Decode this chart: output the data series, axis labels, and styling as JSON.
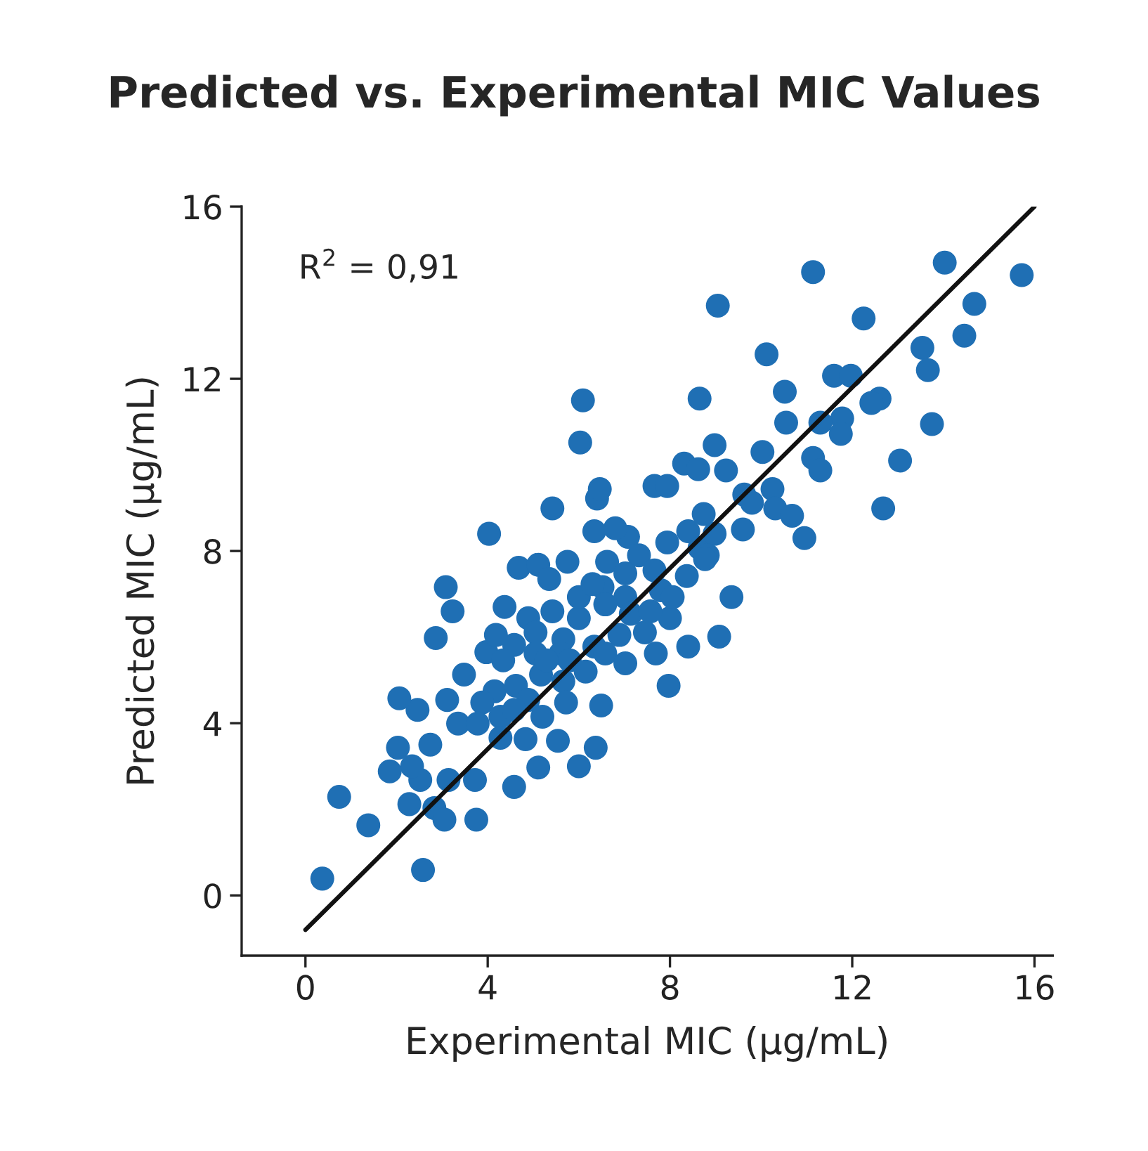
{
  "chart_data": {
    "type": "scatter",
    "title": "Predicted vs. Experimental MIC Values",
    "xlabel": "Experimental MIC (µg/mL)",
    "ylabel": "Predicted MIC (µg/mL)",
    "annotations": [
      "R$^{2}$ = 0,91"
    ],
    "xlim": [
      -1.4,
      16.4
    ],
    "ylim": [
      -1.4,
      16
    ],
    "xticks": [
      0,
      4,
      8,
      12,
      16
    ],
    "yticks": [
      0,
      4,
      8,
      12,
      16
    ],
    "grid": false,
    "series": [
      {
        "marker": "circle",
        "color": "#1f6fb4",
        "x": [
          11.14,
          14.03,
          15.72,
          9.05,
          14.68,
          12.25,
          14.46,
          13.54,
          10.12,
          13.66,
          11.6,
          11.97,
          10.52,
          12.6,
          12.42,
          8.65,
          6.09,
          11.78,
          13.75,
          10.55,
          11.3,
          11.75,
          6.03,
          8.98,
          8.31,
          8.62,
          10.03,
          11.14,
          11.3,
          13.05,
          9.23,
          10.25,
          9.63,
          10.31,
          9.8,
          12.68,
          10.68,
          10.95,
          9.6,
          7.66,
          7.94,
          6.4,
          5.42,
          6.46,
          8.74,
          8.4,
          8.65,
          8.98,
          7.94,
          8.83,
          7.08,
          6.8,
          6.34,
          7.32,
          8.37,
          8.77,
          7.66,
          6.62,
          7.02,
          5.75,
          4.68,
          5.11,
          5.35,
          4.03,
          3.08,
          3.23,
          4.37,
          4.89,
          5.42,
          6.0,
          6.0,
          6.52,
          7.02,
          6.3,
          6.58,
          7.14,
          7.8,
          9.35,
          9.08,
          8.0,
          7.45,
          6.89,
          6.34,
          5.66,
          5.05,
          5.6,
          5.05,
          5.8,
          6.15,
          6.58,
          4.58,
          3.97,
          2.86,
          3.48,
          4.15,
          4.62,
          5.17,
          5.66,
          5.72,
          4.89,
          4.28,
          3.88,
          3.11,
          2.46,
          3.35,
          3.78,
          4.28,
          4.83,
          5.54,
          6.0,
          5.11,
          4.58,
          3.72,
          3.14,
          2.52,
          2.03,
          2.74,
          2.34,
          1.85,
          2.28,
          2.83,
          3.75,
          3.05,
          1.38,
          0.74,
          0.37,
          2.58,
          7.97,
          6.49,
          6.37,
          4.58,
          7.69,
          7.02,
          8.4,
          7.57,
          8.06,
          2.06,
          5.2,
          5.29,
          4.18,
          4.34
        ],
        "values": [
          14.48,
          14.7,
          14.41,
          13.7,
          13.74,
          13.4,
          13.0,
          12.72,
          12.57,
          12.2,
          12.07,
          12.07,
          11.7,
          11.54,
          11.44,
          11.54,
          11.5,
          11.08,
          10.95,
          10.98,
          10.98,
          10.72,
          10.52,
          10.46,
          10.03,
          9.9,
          10.3,
          10.16,
          9.87,
          10.1,
          9.87,
          9.44,
          9.31,
          8.99,
          9.12,
          8.99,
          8.82,
          8.3,
          8.5,
          9.51,
          9.51,
          9.22,
          8.99,
          9.44,
          8.86,
          8.46,
          8.07,
          8.4,
          8.2,
          7.9,
          8.33,
          8.53,
          8.46,
          7.9,
          7.42,
          7.81,
          7.55,
          7.75,
          7.48,
          7.75,
          7.61,
          7.68,
          7.35,
          8.4,
          7.16,
          6.6,
          6.7,
          6.44,
          6.6,
          6.44,
          6.93,
          7.16,
          6.93,
          7.23,
          6.76,
          6.54,
          7.09,
          6.93,
          6.01,
          6.44,
          6.11,
          6.05,
          5.78,
          5.95,
          6.11,
          5.62,
          5.62,
          5.46,
          5.2,
          5.62,
          5.82,
          5.65,
          5.98,
          5.13,
          4.74,
          4.87,
          5.13,
          4.97,
          4.48,
          4.54,
          4.15,
          4.48,
          4.54,
          4.31,
          3.99,
          3.99,
          3.66,
          3.63,
          3.59,
          3.0,
          2.97,
          2.52,
          2.68,
          2.68,
          2.68,
          3.43,
          3.5,
          3.0,
          2.88,
          2.12,
          2.03,
          1.76,
          1.76,
          1.63,
          2.29,
          0.39,
          0.59,
          4.87,
          4.41,
          3.43,
          4.31,
          5.62,
          5.39,
          5.78,
          6.6,
          6.93,
          4.58,
          4.15,
          5.46,
          6.05,
          5.46
        ]
      },
      {
        "type": "line",
        "color": "#111111",
        "x": [
          0,
          16
        ],
        "values": [
          -0.8,
          16
        ]
      }
    ]
  }
}
